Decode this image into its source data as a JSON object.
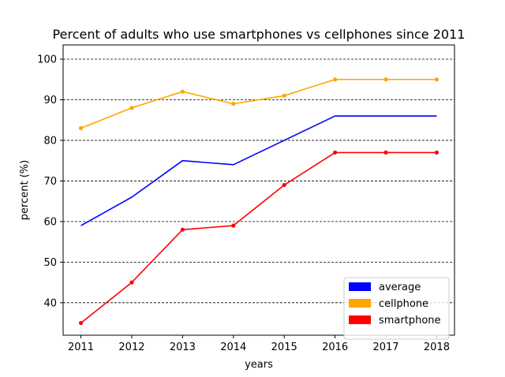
{
  "chart_data": {
    "type": "line",
    "title": "Percent of adults who use smartphones vs cellphones since 2011",
    "xlabel": "years",
    "ylabel": "percent (%)",
    "x": [
      2011,
      2012,
      2013,
      2014,
      2015,
      2016,
      2017,
      2018
    ],
    "xlim": [
      2010.65,
      2018.35
    ],
    "ylim": [
      32,
      103.5
    ],
    "yticks": [
      40,
      50,
      60,
      70,
      80,
      90,
      100
    ],
    "grid": "y-dashed",
    "legend_position": "lower-right",
    "series": [
      {
        "name": "average",
        "color": "#0000ff",
        "markers": false,
        "values": [
          59,
          66,
          75,
          74,
          80,
          86,
          86,
          86
        ]
      },
      {
        "name": "cellphone",
        "color": "#ffa500",
        "markers": true,
        "values": [
          83,
          88,
          92,
          89,
          91,
          95,
          95,
          95
        ]
      },
      {
        "name": "smartphone",
        "color": "#ff0000",
        "markers": true,
        "values": [
          35,
          45,
          58,
          59,
          69,
          77,
          77,
          77
        ]
      }
    ]
  }
}
